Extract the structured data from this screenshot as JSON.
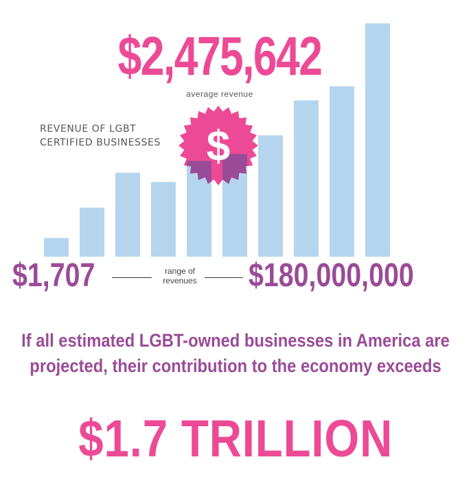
{
  "colors": {
    "bar": "#b5d5ee",
    "pink": "#ec4a96",
    "purple": "#9a4b97",
    "badge": "#ec4a96",
    "badge_overlay": "#9a4b97"
  },
  "headline": {
    "value": "$2,475,642",
    "label": "average revenue"
  },
  "badge": {
    "icon": "dollar-sign-badge-icon",
    "symbol": "$"
  },
  "range": {
    "min": "$1,707",
    "label_line1": "range of",
    "label_line2": "revenues",
    "max": "$180,000,000"
  },
  "projection": {
    "text": "If all estimated LGBT-owned businesses in America are projected, their contribution to the economy exceeds",
    "total": "$1.7 TRILLION"
  },
  "chart_data": {
    "type": "bar",
    "title": "REVENUE OF LGBT CERTIFIED BUSINESSES",
    "bar_count": 10,
    "relative_heights": [
      0.08,
      0.21,
      0.36,
      0.32,
      0.41,
      0.44,
      0.52,
      0.67,
      0.73,
      1.0
    ],
    "ylim": [
      0,
      1
    ],
    "grid": false,
    "legend": "none"
  }
}
